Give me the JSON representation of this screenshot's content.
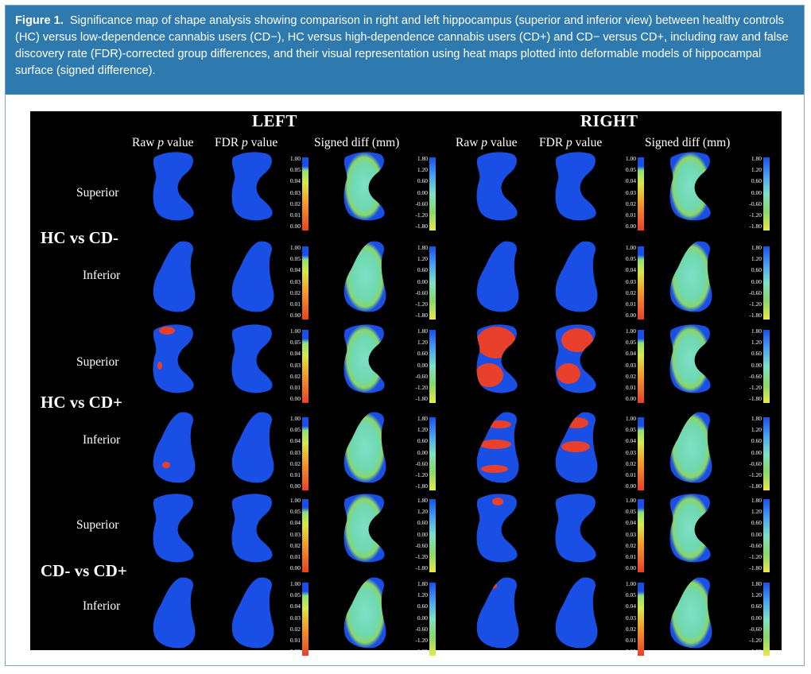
{
  "caption": {
    "label": "Figure 1.",
    "text": "Significance map of shape analysis showing comparison in right and left hippocampus (superior and inferior view) between healthy controls (HC) versus low-dependence cannabis users (CD−), HC versus high-dependence cannabis users (CD+) and CD− versus CD+, including raw and false discovery rate (FDR)-corrected group differences, and their visual representation using heat maps plotted into deformable models of hippocampal surface (signed difference)."
  },
  "figure": {
    "sides": [
      "LEFT",
      "RIGHT"
    ],
    "columns": [
      {
        "pre": "Raw ",
        "p": "p",
        "post": " value"
      },
      {
        "pre": "FDR ",
        "p": "p",
        "post": " value"
      },
      {
        "pre": "Signed diff (mm)",
        "p": "",
        "post": ""
      },
      {
        "pre": "Raw ",
        "p": "p",
        "post": " value"
      },
      {
        "pre": "FDR ",
        "p": "p",
        "post": " value"
      },
      {
        "pre": "Signed diff (mm)",
        "p": "",
        "post": ""
      }
    ],
    "groups": [
      "HC vs CD-",
      "HC vs CD+",
      "CD- vs CD+"
    ],
    "views": [
      "Superior",
      "Inferior",
      "Superior",
      "Inferior",
      "Superior",
      "Inferior"
    ],
    "pvalue_ticks": [
      "1.00",
      "0.05",
      "0.04",
      "0.03",
      "0.02",
      "0.01",
      "0.00"
    ],
    "diff_ticks": [
      "1.80",
      "1.20",
      "0.60",
      "0.00",
      "-0.60",
      "-1.20",
      "-1.80"
    ],
    "colors": {
      "significance_none": "#1a4fe6",
      "significance_sig": "#e8402a",
      "diff_mid": "#7fe0c6",
      "diff_high": "#1a4fe6",
      "diff_low": "#e8e84a",
      "caption_bg": "#2e79ad"
    }
  }
}
